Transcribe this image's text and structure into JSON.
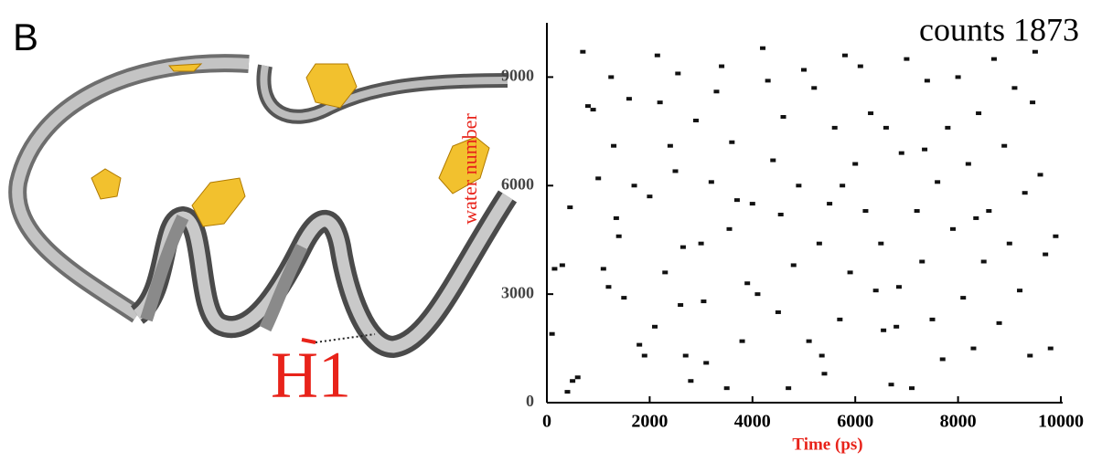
{
  "figure": {
    "panel": "B",
    "helix_label": "H1"
  },
  "chart_data": {
    "type": "scatter",
    "annotation": "counts 1873",
    "x_label": "Time (ps)",
    "y_label": "water number",
    "color": "#111111",
    "x": [
      100,
      150,
      300,
      400,
      500,
      600,
      700,
      800,
      900,
      1000,
      1100,
      1200,
      1250,
      1300,
      1400,
      1500,
      1600,
      1700,
      1800,
      1900,
      2000,
      2100,
      2200,
      2300,
      2400,
      2500,
      2550,
      2600,
      2700,
      2800,
      2900,
      3000,
      3100,
      3200,
      3300,
      3400,
      3500,
      3600,
      3700,
      3800,
      3900,
      4000,
      4100,
      4200,
      4300,
      4400,
      4500,
      4600,
      4700,
      4800,
      4900,
      5000,
      5100,
      5200,
      5300,
      5400,
      5500,
      5600,
      5700,
      5800,
      5900,
      6000,
      6100,
      6200,
      6300,
      6400,
      6500,
      6600,
      6700,
      6800,
      6900,
      7000,
      7100,
      7200,
      7300,
      7400,
      7500,
      7600,
      7700,
      7800,
      7900,
      8000,
      8100,
      8200,
      8300,
      8400,
      8500,
      8600,
      8700,
      8800,
      8900,
      9000,
      9100,
      9200,
      9300,
      9400,
      9500,
      9600,
      9700,
      9800,
      9900,
      450,
      1350,
      2650,
      3050,
      4550,
      5350,
      6550,
      7350,
      8350,
      9450,
      5750,
      6850,
      2150,
      3550
    ],
    "values": [
      1900,
      3700,
      3800,
      300,
      600,
      700,
      9700,
      8200,
      8100,
      6200,
      3700,
      3200,
      9000,
      7100,
      4600,
      2900,
      8400,
      6000,
      1600,
      1300,
      5700,
      2100,
      8300,
      3600,
      7100,
      6400,
      9100,
      2700,
      1300,
      600,
      7800,
      4400,
      1100,
      6100,
      8600,
      9300,
      400,
      7200,
      5600,
      1700,
      3300,
      5500,
      3000,
      9800,
      8900,
      6700,
      2500,
      7900,
      400,
      3800,
      6000,
      9200,
      1700,
      8700,
      4400,
      800,
      5500,
      7600,
      2300,
      9600,
      3600,
      6600,
      9300,
      5300,
      8000,
      3100,
      4400,
      7600,
      500,
      2100,
      6900,
      9500,
      400,
      5300,
      3900,
      8900,
      2300,
      6100,
      1200,
      7600,
      4800,
      9000,
      2900,
      6600,
      1500,
      8000,
      3900,
      5300,
      9500,
      2200,
      7100,
      4400,
      8700,
      3100,
      5800,
      1300,
      9700,
      6300,
      4100,
      1500,
      4600,
      5400,
      5100,
      4300,
      2800,
      5200,
      1300,
      2000,
      7000,
      5100,
      8300,
      6000,
      3200,
      9600,
      4800
    ],
    "xlim": [
      0,
      10000
    ],
    "ylim": [
      0,
      10500
    ],
    "xticks": [
      0,
      2000,
      4000,
      6000,
      8000,
      10000
    ],
    "yticks": [
      0,
      3000,
      6000,
      9000
    ]
  }
}
